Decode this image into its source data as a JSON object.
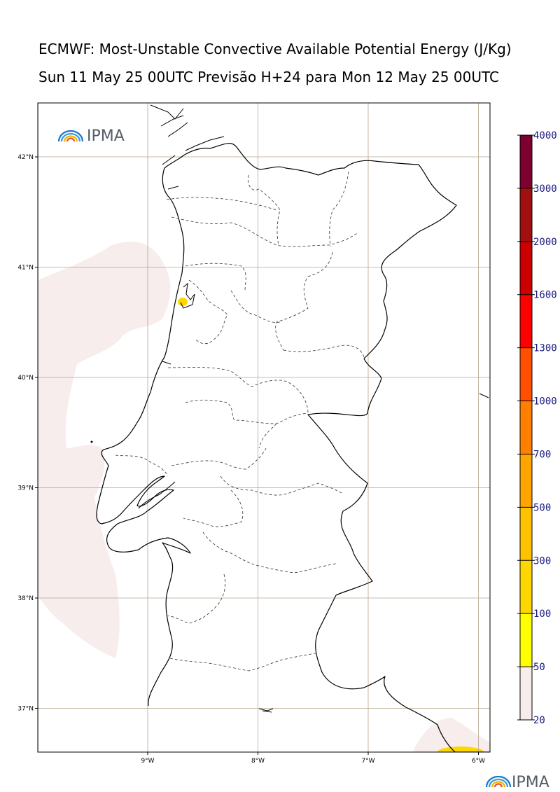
{
  "title": {
    "line1": "ECMWF: Most-Unstable Convective Available Potential Energy (J/Kg)",
    "line2": "Sun 11 May 25 00UTC Previsão H+24 para Mon 12 May 25 00UTC"
  },
  "logo": {
    "text": "IPMA",
    "icon": "ipma-rainbow-icon"
  },
  "map": {
    "lon_range": [
      -10,
      -5.9
    ],
    "lat_range": [
      36.6,
      42.5
    ],
    "grid_lines": true,
    "latitudes": [
      {
        "value": 42,
        "label": "42°N"
      },
      {
        "value": 41,
        "label": "41°N"
      },
      {
        "value": 40,
        "label": "40°N"
      },
      {
        "value": 39,
        "label": "39°N"
      },
      {
        "value": 38,
        "label": "38°N"
      },
      {
        "value": 37,
        "label": "37°N"
      }
    ],
    "longitudes": [
      {
        "value": -9,
        "label": "9°W"
      },
      {
        "value": -8,
        "label": "8°W"
      },
      {
        "value": -7,
        "label": "7°W"
      },
      {
        "value": -6,
        "label": "6°W"
      }
    ]
  },
  "colorbar": {
    "levels": [
      "20",
      "50",
      "100",
      "300",
      "500",
      "700",
      "1000",
      "1300",
      "1600",
      "2000",
      "3000",
      "4000"
    ],
    "colors": [
      "#f7eded",
      "#ffff00",
      "#ffd700",
      "#ffc200",
      "#ffa500",
      "#ff8000",
      "#ff4f00",
      "#ff0000",
      "#cc0000",
      "#a01010",
      "#7d0030",
      "#5c1000"
    ]
  }
}
